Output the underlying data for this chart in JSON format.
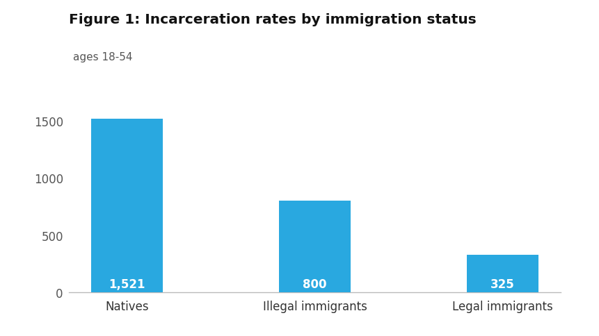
{
  "title": "Figure 1: Incarceration rates by immigration status",
  "subtitle": "ages 18-54",
  "categories": [
    "Natives",
    "Illegal immigrants",
    "Legal immigrants"
  ],
  "values": [
    1521,
    800,
    325
  ],
  "bar_labels": [
    "1,521",
    "800",
    "325"
  ],
  "bar_color": "#29a8e0",
  "label_color": "#ffffff",
  "background_color": "#ffffff",
  "ylim": [
    0,
    1650
  ],
  "yticks": [
    0,
    500,
    1000,
    1500
  ],
  "bar_width": 0.38,
  "title_fontsize": 14.5,
  "subtitle_fontsize": 11,
  "tick_label_fontsize": 12,
  "bar_label_fontsize": 12,
  "ytick_color": "#555555",
  "xtick_color": "#333333",
  "spine_color": "#bbbbbb",
  "title_color": "#111111",
  "subtitle_color": "#555555"
}
